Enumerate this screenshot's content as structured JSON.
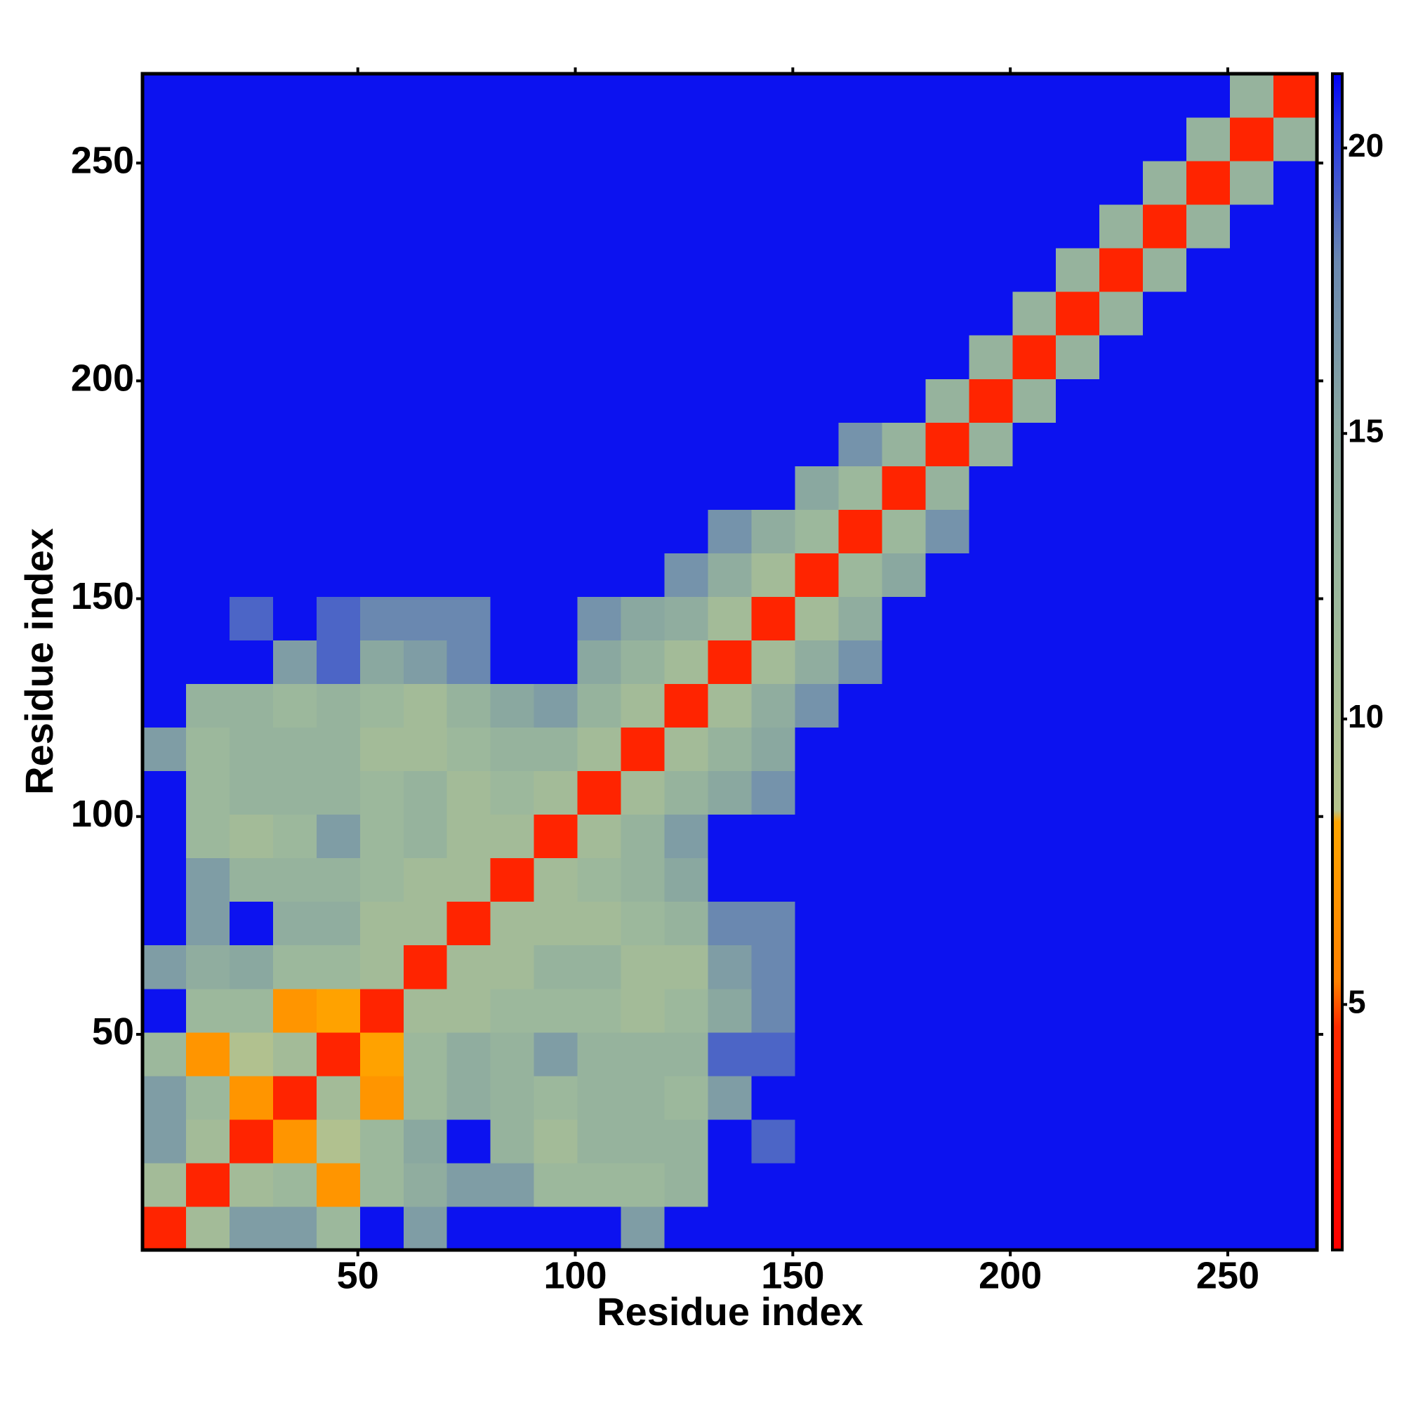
{
  "chart_data": {
    "type": "heatmap",
    "x_label": "Residue index",
    "y_label": "Residue index",
    "x_bins": [
      0.5,
      10.5,
      20.5,
      30.5,
      40.5,
      50.5,
      60.5,
      70.5,
      80.5,
      90.5,
      100.5,
      110.5,
      120.5,
      130.5,
      140.5,
      150.5,
      160.5,
      170.5,
      180.5,
      190.5,
      200.5,
      210.5,
      220.5,
      230.5,
      240.5,
      250.5,
      260.5,
      270.5
    ],
    "y_bins": [
      0.5,
      10.5,
      20.5,
      30.5,
      40.5,
      50.5,
      60.5,
      70.5,
      80.5,
      90.5,
      100.5,
      110.5,
      120.5,
      130.5,
      140.5,
      150.5,
      160.5,
      170.5,
      180.5,
      190.5,
      200.5,
      210.5,
      220.5,
      230.5,
      240.5,
      250.5,
      260.5,
      270.5
    ],
    "values": [
      [
        4,
        11,
        16,
        16,
        12,
        21,
        16,
        21,
        21,
        21,
        21,
        16,
        21,
        21,
        21,
        21,
        21,
        21,
        21,
        21,
        21,
        21,
        21,
        21,
        21,
        21,
        21
      ],
      [
        11,
        4,
        11,
        12,
        7,
        12,
        14,
        16,
        16,
        12,
        12,
        12,
        13,
        21,
        21,
        21,
        21,
        21,
        21,
        21,
        21,
        21,
        21,
        21,
        21,
        21,
        21
      ],
      [
        16,
        11,
        4,
        7,
        9,
        12,
        15,
        21,
        13,
        11,
        13,
        13,
        13,
        21,
        19,
        21,
        21,
        21,
        21,
        21,
        21,
        21,
        21,
        21,
        21,
        21,
        21
      ],
      [
        16,
        12,
        7,
        4,
        11,
        7,
        12,
        14,
        13,
        12,
        13,
        13,
        12,
        16,
        21,
        21,
        21,
        21,
        21,
        21,
        21,
        21,
        21,
        21,
        21,
        21,
        21
      ],
      [
        12,
        7,
        9,
        11,
        4,
        8,
        12,
        14,
        13,
        16,
        13,
        13,
        13,
        19,
        19,
        21,
        21,
        21,
        21,
        21,
        21,
        21,
        21,
        21,
        21,
        21,
        21
      ],
      [
        21,
        12,
        12,
        7,
        8,
        4,
        11,
        11,
        12,
        12,
        12,
        11,
        12,
        15,
        18,
        21,
        21,
        21,
        21,
        21,
        21,
        21,
        21,
        21,
        21,
        21,
        21
      ],
      [
        16,
        14,
        15,
        12,
        12,
        11,
        4,
        11,
        11,
        13,
        13,
        11,
        11,
        16,
        18,
        21,
        21,
        21,
        21,
        21,
        21,
        21,
        21,
        21,
        21,
        21,
        21
      ],
      [
        21,
        16,
        21,
        14,
        14,
        11,
        11,
        4,
        11,
        11,
        11,
        12,
        13,
        18,
        18,
        21,
        21,
        21,
        21,
        21,
        21,
        21,
        21,
        21,
        21,
        21,
        21
      ],
      [
        21,
        16,
        13,
        13,
        13,
        12,
        11,
        11,
        4,
        11,
        12,
        13,
        15,
        21,
        21,
        21,
        21,
        21,
        21,
        21,
        21,
        21,
        21,
        21,
        21,
        21,
        21
      ],
      [
        21,
        12,
        11,
        12,
        16,
        12,
        13,
        11,
        11,
        4,
        11,
        13,
        16,
        21,
        21,
        21,
        21,
        21,
        21,
        21,
        21,
        21,
        21,
        21,
        21,
        21,
        21
      ],
      [
        21,
        12,
        13,
        13,
        13,
        12,
        13,
        11,
        12,
        11,
        4,
        11,
        13,
        15,
        17,
        21,
        21,
        21,
        21,
        21,
        21,
        21,
        21,
        21,
        21,
        21,
        21
      ],
      [
        16,
        12,
        13,
        13,
        13,
        11,
        11,
        12,
        13,
        13,
        11,
        4,
        11,
        13,
        15,
        21,
        21,
        21,
        21,
        21,
        21,
        21,
        21,
        21,
        21,
        21,
        21
      ],
      [
        21,
        13,
        13,
        12,
        13,
        12,
        11,
        13,
        15,
        16,
        13,
        11,
        4,
        11,
        14,
        17,
        21,
        21,
        21,
        21,
        21,
        21,
        21,
        21,
        21,
        21,
        21
      ],
      [
        21,
        21,
        21,
        16,
        19,
        15,
        16,
        18,
        21,
        21,
        15,
        13,
        11,
        4,
        11,
        14,
        17,
        21,
        21,
        21,
        21,
        21,
        21,
        21,
        21,
        21,
        21
      ],
      [
        21,
        21,
        19,
        21,
        19,
        18,
        18,
        18,
        21,
        21,
        17,
        15,
        14,
        11,
        4,
        11,
        14,
        21,
        21,
        21,
        21,
        21,
        21,
        21,
        21,
        21,
        21
      ],
      [
        21,
        21,
        21,
        21,
        21,
        21,
        21,
        21,
        21,
        21,
        21,
        21,
        17,
        14,
        11,
        4,
        12,
        15,
        21,
        21,
        21,
        21,
        21,
        21,
        21,
        21,
        21
      ],
      [
        21,
        21,
        21,
        21,
        21,
        21,
        21,
        21,
        21,
        21,
        21,
        21,
        21,
        17,
        14,
        12,
        4,
        12,
        17,
        21,
        21,
        21,
        21,
        21,
        21,
        21,
        21
      ],
      [
        21,
        21,
        21,
        21,
        21,
        21,
        21,
        21,
        21,
        21,
        21,
        21,
        21,
        21,
        21,
        15,
        12,
        4,
        13,
        21,
        21,
        21,
        21,
        21,
        21,
        21,
        21
      ],
      [
        21,
        21,
        21,
        21,
        21,
        21,
        21,
        21,
        21,
        21,
        21,
        21,
        21,
        21,
        21,
        21,
        17,
        13,
        4,
        13,
        21,
        21,
        21,
        21,
        21,
        21,
        21
      ],
      [
        21,
        21,
        21,
        21,
        21,
        21,
        21,
        21,
        21,
        21,
        21,
        21,
        21,
        21,
        21,
        21,
        21,
        21,
        13,
        4,
        13,
        21,
        21,
        21,
        21,
        21,
        21
      ],
      [
        21,
        21,
        21,
        21,
        21,
        21,
        21,
        21,
        21,
        21,
        21,
        21,
        21,
        21,
        21,
        21,
        21,
        21,
        21,
        13,
        4,
        13,
        21,
        21,
        21,
        21,
        21
      ],
      [
        21,
        21,
        21,
        21,
        21,
        21,
        21,
        21,
        21,
        21,
        21,
        21,
        21,
        21,
        21,
        21,
        21,
        21,
        21,
        21,
        13,
        4,
        13,
        21,
        21,
        21,
        21
      ],
      [
        21,
        21,
        21,
        21,
        21,
        21,
        21,
        21,
        21,
        21,
        21,
        21,
        21,
        21,
        21,
        21,
        21,
        21,
        21,
        21,
        21,
        13,
        4,
        13,
        21,
        21,
        21
      ],
      [
        21,
        21,
        21,
        21,
        21,
        21,
        21,
        21,
        21,
        21,
        21,
        21,
        21,
        21,
        21,
        21,
        21,
        21,
        21,
        21,
        21,
        21,
        13,
        4,
        13,
        21,
        21
      ],
      [
        21,
        21,
        21,
        21,
        21,
        21,
        21,
        21,
        21,
        21,
        21,
        21,
        21,
        21,
        21,
        21,
        21,
        21,
        21,
        21,
        21,
        21,
        21,
        13,
        4,
        13,
        21
      ],
      [
        21,
        21,
        21,
        21,
        21,
        21,
        21,
        21,
        21,
        21,
        21,
        21,
        21,
        21,
        21,
        21,
        21,
        21,
        21,
        21,
        21,
        21,
        21,
        21,
        13,
        4,
        13
      ],
      [
        21,
        21,
        21,
        21,
        21,
        21,
        21,
        21,
        21,
        21,
        21,
        21,
        21,
        21,
        21,
        21,
        21,
        21,
        21,
        21,
        21,
        21,
        21,
        21,
        21,
        13,
        4
      ]
    ],
    "xlim": [
      0.5,
      270.5
    ],
    "ylim": [
      0.5,
      270.5
    ],
    "xticks": [
      50,
      100,
      150,
      200,
      250
    ],
    "yticks": [
      50,
      100,
      150,
      200,
      250
    ],
    "colorbar": {
      "lim": [
        0.7,
        21.3
      ],
      "ticks": [
        5,
        10,
        15,
        20
      ],
      "colorscale": [
        [
          0.7,
          "#ff0000"
        ],
        [
          4.6,
          "#ff2a00"
        ],
        [
          5.4,
          "#ff8000"
        ],
        [
          8.2,
          "#ffa500"
        ],
        [
          8.4,
          "#b5c38c"
        ],
        [
          12,
          "#9cb89c"
        ],
        [
          15,
          "#8aa8a0"
        ],
        [
          18,
          "#6a88b0"
        ],
        [
          20.5,
          "#2030e8"
        ],
        [
          21.3,
          "#0000f5"
        ]
      ]
    }
  }
}
